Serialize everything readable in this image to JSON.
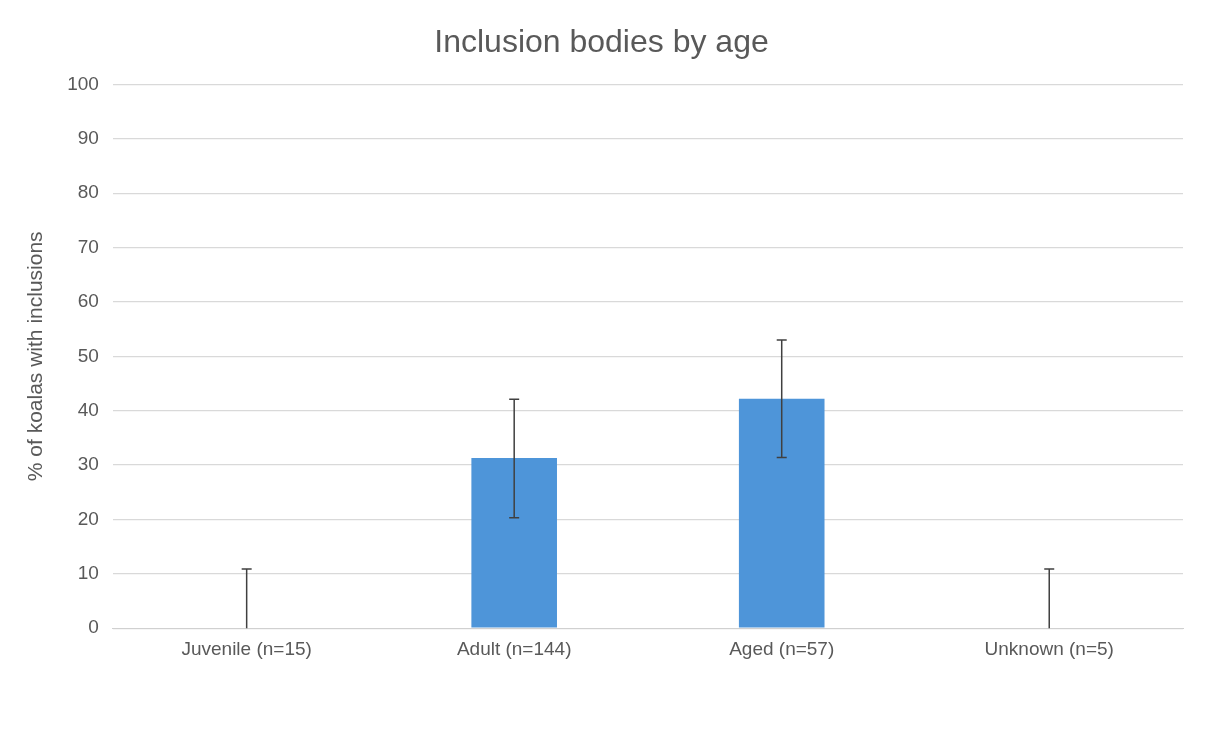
{
  "chart_data": {
    "type": "bar",
    "title": "Inclusion bodies by age",
    "ylabel": "% of koalas with inclusions",
    "categories": [
      "Juvenile (n=15)",
      "Adult (n=144)",
      "Aged (n=57)",
      "Unknown (n=5)"
    ],
    "values": [
      0,
      31.3,
      42.2,
      0
    ],
    "errors": [
      [
        0,
        10.9
      ],
      [
        20.3,
        42.1
      ],
      [
        31.4,
        53.0
      ],
      [
        0,
        10.9
      ]
    ],
    "color": "#4e95d9",
    "ylim": [
      0,
      100
    ],
    "yticks": [
      0,
      10,
      20,
      30,
      40,
      50,
      60,
      70,
      80,
      90,
      100
    ],
    "grid": "y",
    "legend": false
  }
}
